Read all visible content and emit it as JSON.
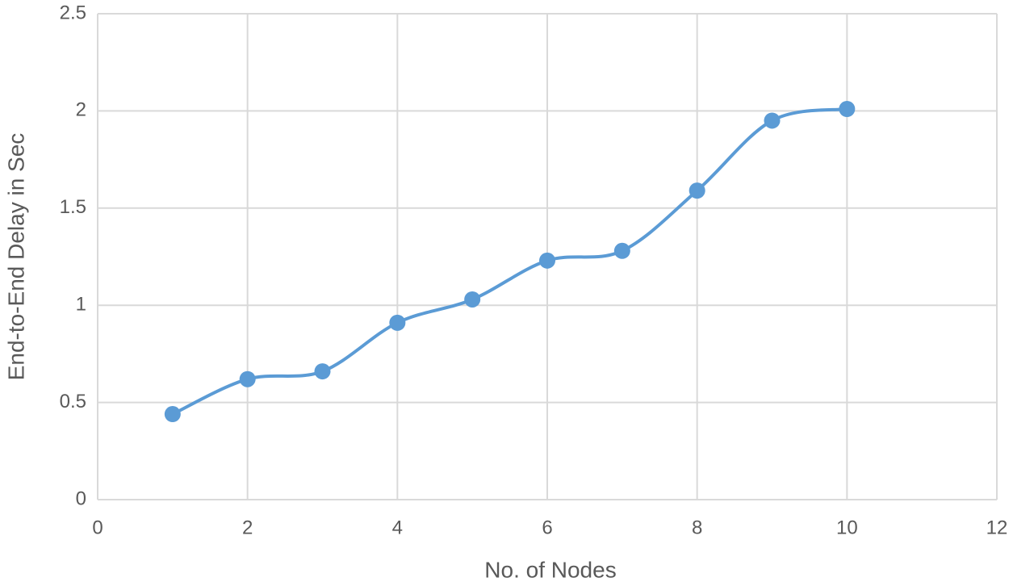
{
  "chart_data": {
    "type": "line",
    "x_label": "No. of Nodes",
    "y_label": "End-to-End Delay in Sec",
    "x": [
      1,
      2,
      3,
      4,
      5,
      6,
      7,
      8,
      9,
      10
    ],
    "series": [
      {
        "color": "#5b9bd5",
        "values": [
          0.44,
          0.62,
          0.66,
          0.91,
          1.03,
          1.23,
          1.28,
          1.59,
          1.95,
          2.01
        ]
      }
    ],
    "xlim": [
      0,
      12
    ],
    "xticks": [
      0,
      2,
      4,
      6,
      8,
      10,
      12
    ],
    "ylim": [
      0,
      2.5
    ],
    "yticks": [
      0,
      0.5,
      1,
      1.5,
      2,
      2.5
    ],
    "grid": true,
    "smooth": true
  }
}
